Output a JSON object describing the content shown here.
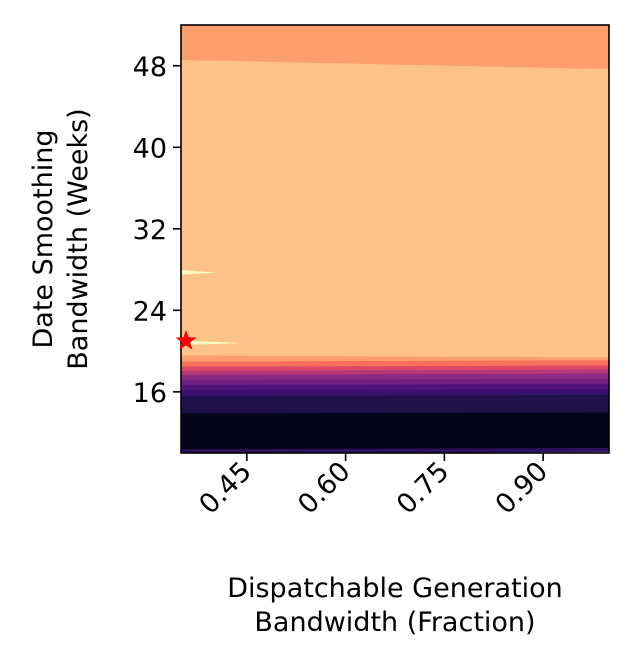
{
  "chart_data": {
    "type": "heatmap",
    "subtype": "filled-contour",
    "xlabel": [
      "Dispatchable Generation",
      "Bandwidth (Fraction)"
    ],
    "ylabel": [
      "Date Smoothing",
      "Bandwidth (Weeks)"
    ],
    "xlim": [
      0.35,
      1.0
    ],
    "ylim": [
      10,
      52
    ],
    "x_ticks": [
      0.45,
      0.6,
      0.75,
      0.9
    ],
    "x_tick_labels": [
      "0.45",
      "0.60",
      "0.75",
      "0.90"
    ],
    "y_ticks": [
      16,
      24,
      32,
      40,
      48
    ],
    "y_tick_labels": [
      "16",
      "24",
      "32",
      "40",
      "48"
    ],
    "colormap": "magma",
    "grid": false,
    "bands": [
      {
        "y_low": 10.0,
        "y_high": 10.4,
        "color": "#2c115f"
      },
      {
        "y_low": 10.4,
        "y_high": 13.9,
        "color": "#050416"
      },
      {
        "y_low": 13.9,
        "y_high": 15.6,
        "color": "#1d1147"
      },
      {
        "y_low": 15.6,
        "y_high": 16.2,
        "color": "#3b0f70"
      },
      {
        "y_low": 16.2,
        "y_high": 16.7,
        "color": "#51127c"
      },
      {
        "y_low": 16.7,
        "y_high": 17.2,
        "color": "#721f81"
      },
      {
        "y_low": 17.2,
        "y_high": 17.7,
        "color": "#8c2981"
      },
      {
        "y_low": 17.7,
        "y_high": 18.1,
        "color": "#b73779"
      },
      {
        "y_low": 18.1,
        "y_high": 18.5,
        "color": "#de4968"
      },
      {
        "y_low": 18.5,
        "y_high": 19.0,
        "color": "#f7705c"
      },
      {
        "y_low": 19.0,
        "y_high": 19.6,
        "color": "#fd9f6c"
      },
      {
        "y_low": 19.6,
        "y_high": 48.5,
        "color": "#fcc287"
      },
      {
        "y_low": 48.5,
        "y_high": 52.0,
        "color": "#fd9f6c"
      }
    ],
    "islands": [
      {
        "x": [
          0.35,
          0.405
        ],
        "y": 27.7,
        "color": "#fcfdbf"
      },
      {
        "x": [
          0.35,
          0.445
        ],
        "y": 20.8,
        "color": "#fcfdbf"
      }
    ],
    "marker": {
      "symbol": "star",
      "x": 0.35,
      "y": 21.0,
      "color": "#ff0000"
    }
  }
}
